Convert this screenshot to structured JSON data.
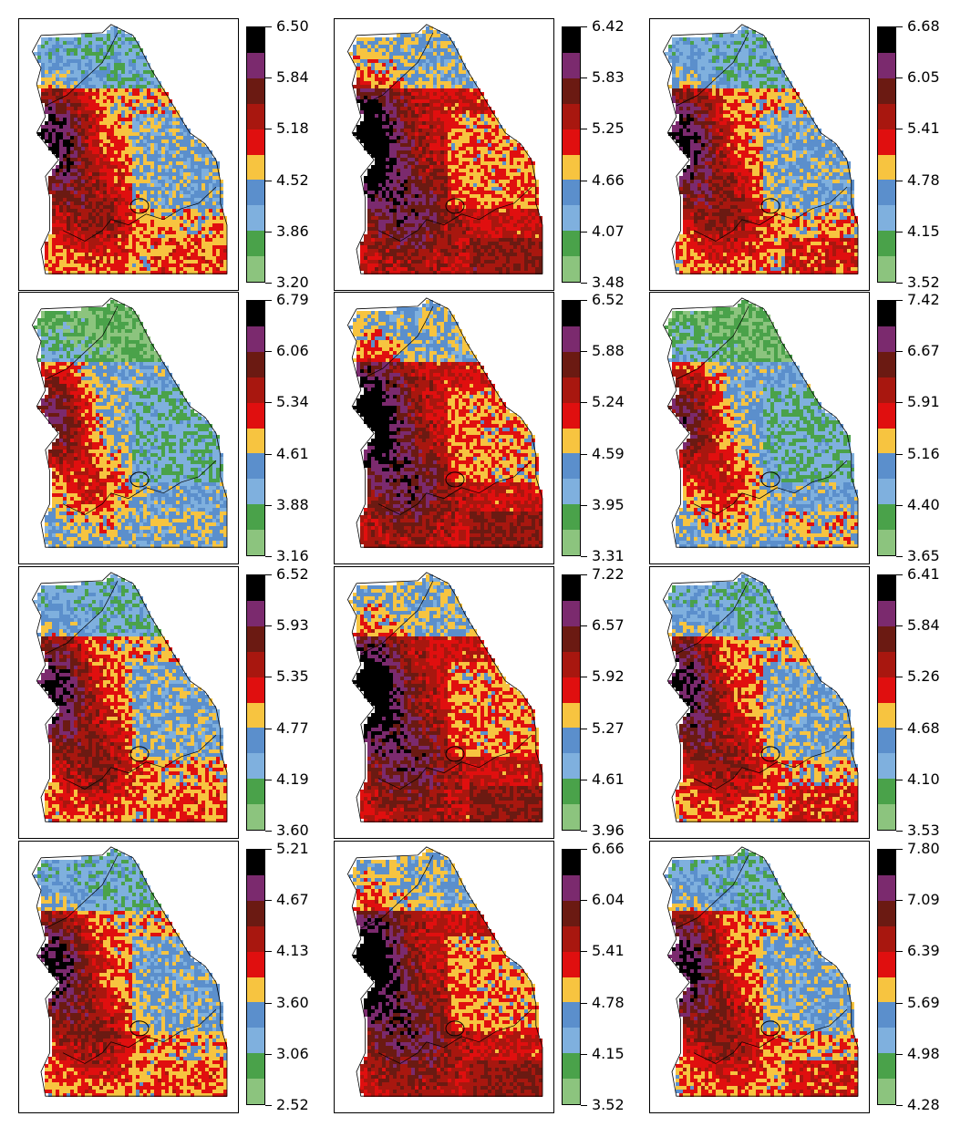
{
  "palette": [
    "#000000",
    "#7b2a6e",
    "#6b1a12",
    "#a8170f",
    "#e00f0f",
    "#f7c440",
    "#5b8fcc",
    "#7fb0de",
    "#4aa24a",
    "#8cc47e"
  ],
  "panels": [
    {
      "ticks": [
        "6.50",
        "5.84",
        "5.18",
        "4.52",
        "3.86",
        "3.20"
      ],
      "map": "map-panel-r1c1"
    },
    {
      "ticks": [
        "6.42",
        "5.83",
        "5.25",
        "4.66",
        "4.07",
        "3.48"
      ],
      "map": "map-panel-r1c2"
    },
    {
      "ticks": [
        "6.68",
        "6.05",
        "5.41",
        "4.78",
        "4.15",
        "3.52"
      ],
      "map": "map-panel-r1c3"
    },
    {
      "ticks": [
        "6.79",
        "6.06",
        "5.34",
        "4.61",
        "3.88",
        "3.16"
      ],
      "map": "map-panel-r2c1"
    },
    {
      "ticks": [
        "6.52",
        "5.88",
        "5.24",
        "4.59",
        "3.95",
        "3.31"
      ],
      "map": "map-panel-r2c2"
    },
    {
      "ticks": [
        "7.42",
        "6.67",
        "5.91",
        "5.16",
        "4.40",
        "3.65"
      ],
      "map": "map-panel-r2c3"
    },
    {
      "ticks": [
        "6.52",
        "5.93",
        "5.35",
        "4.77",
        "4.19",
        "3.60"
      ],
      "map": "map-panel-r3c1"
    },
    {
      "ticks": [
        "7.22",
        "6.57",
        "5.92",
        "5.27",
        "4.61",
        "3.96"
      ],
      "map": "map-panel-r3c2"
    },
    {
      "ticks": [
        "6.41",
        "5.84",
        "5.26",
        "4.68",
        "4.10",
        "3.53"
      ],
      "map": "map-panel-r3c3"
    },
    {
      "ticks": [
        "5.21",
        "4.67",
        "4.13",
        "3.60",
        "3.06",
        "2.52"
      ],
      "map": "map-panel-r4c1"
    },
    {
      "ticks": [
        "6.66",
        "6.04",
        "5.41",
        "4.78",
        "4.15",
        "3.52"
      ],
      "map": "map-panel-r4c2"
    },
    {
      "ticks": [
        "7.80",
        "7.09",
        "6.39",
        "5.69",
        "4.98",
        "4.28"
      ],
      "map": "map-panel-r4c3"
    }
  ]
}
